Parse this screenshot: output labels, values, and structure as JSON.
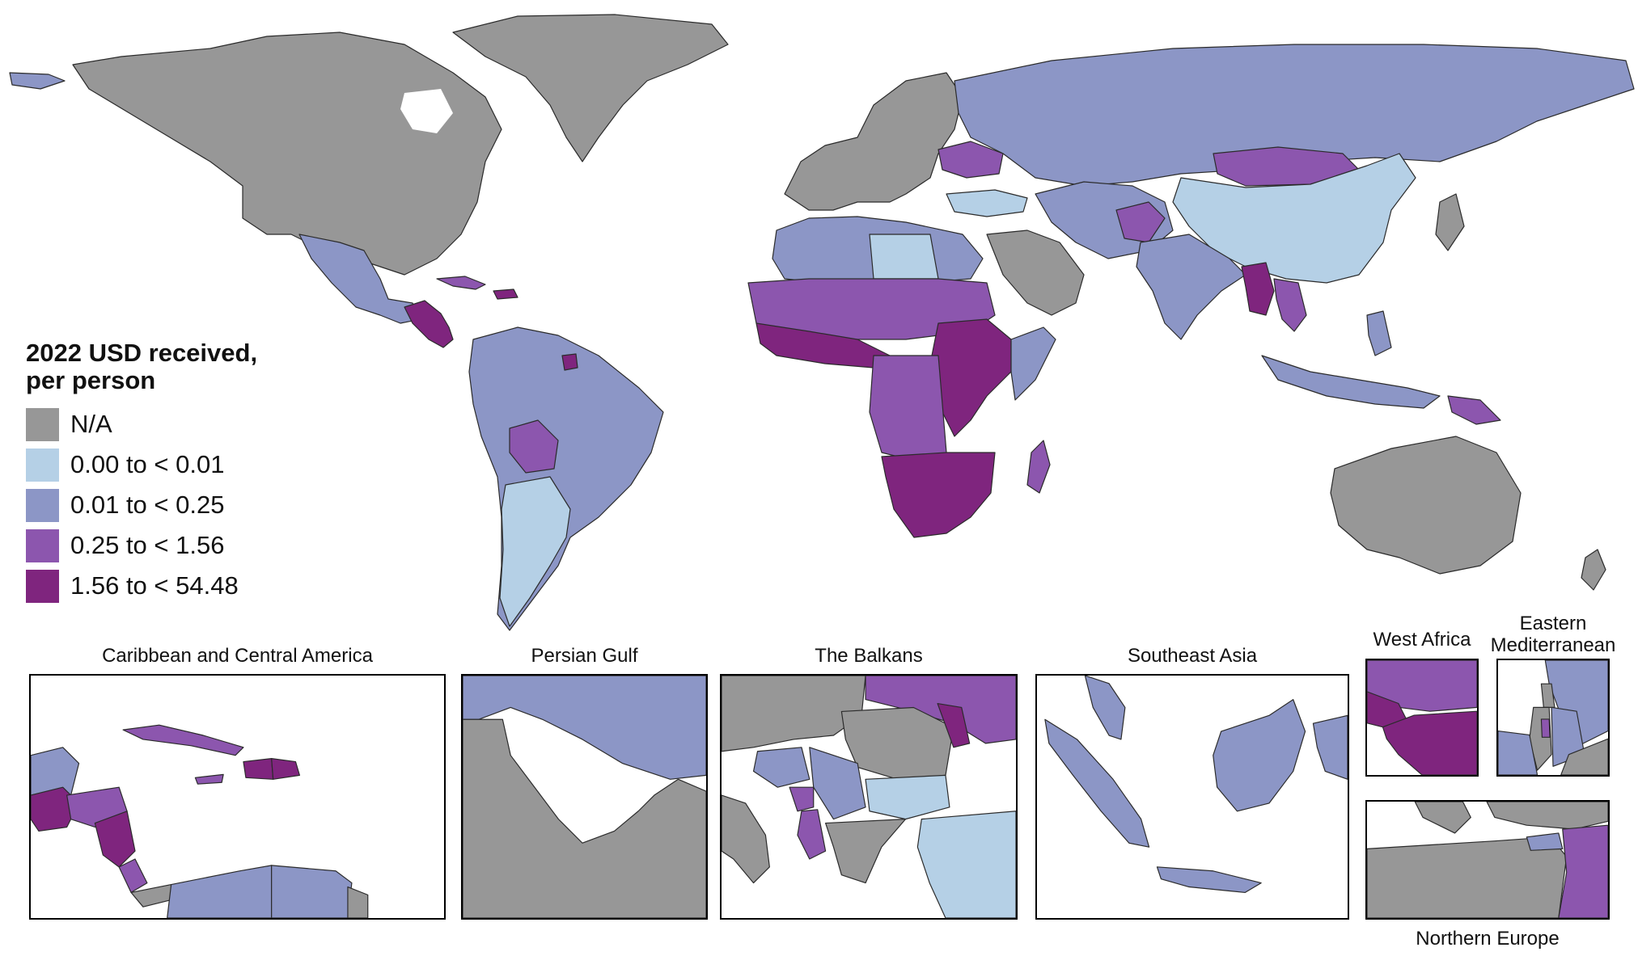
{
  "legend": {
    "title": "2022 USD received,\nper person",
    "items": [
      {
        "label": "N/A",
        "color": "#979797"
      },
      {
        "label": "0.00 to < 0.01",
        "color": "#b5d0e6"
      },
      {
        "label": "0.01 to < 0.25",
        "color": "#8c96c6"
      },
      {
        "label": "0.25 to < 1.56",
        "color": "#8c56ae"
      },
      {
        "label": "1.56 to < 54.48",
        "color": "#7f257e"
      }
    ]
  },
  "insets": [
    {
      "title": "Caribbean and Central America"
    },
    {
      "title": "Persian Gulf"
    },
    {
      "title": "The Balkans"
    },
    {
      "title": "Southeast Asia"
    },
    {
      "title": "West Africa"
    },
    {
      "title": "Eastern\nMediterranean"
    },
    {
      "title": "Northern Europe"
    }
  ]
}
